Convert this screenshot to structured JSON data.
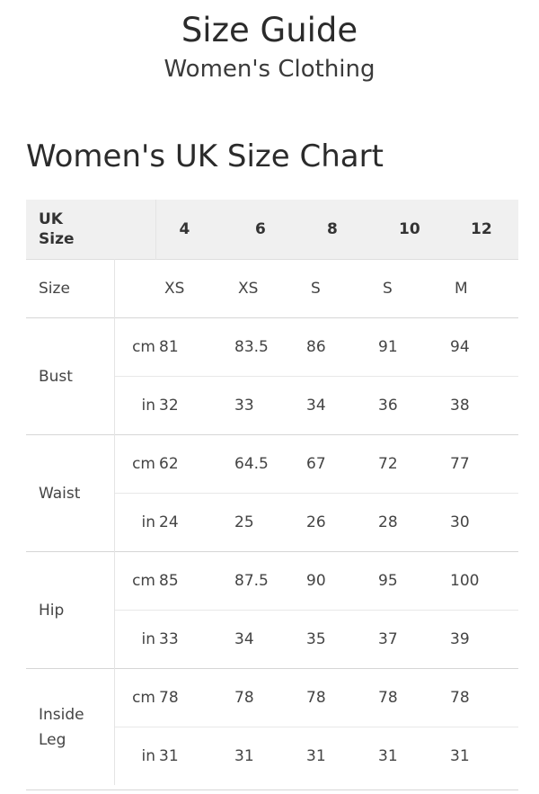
{
  "header": {
    "title": "Size Guide",
    "subtitle": "Women's Clothing"
  },
  "chart": {
    "heading": "Women's UK Size Chart",
    "uk_size_label_line1": "UK",
    "uk_size_label_line2": "Size",
    "uk_sizes": [
      "4",
      "6",
      "8",
      "10",
      "12"
    ],
    "size_label": "Size",
    "letter_sizes": [
      "XS",
      "XS",
      "S",
      "S",
      "M"
    ],
    "measurements": [
      {
        "label": "Bust",
        "rows": [
          {
            "unit": "cm",
            "values": [
              "81",
              "83.5",
              "86",
              "91",
              "94"
            ]
          },
          {
            "unit": "in",
            "values": [
              "32",
              "33",
              "34",
              "36",
              "38"
            ]
          }
        ]
      },
      {
        "label": "Waist",
        "rows": [
          {
            "unit": "cm",
            "values": [
              "62",
              "64.5",
              "67",
              "72",
              "77"
            ]
          },
          {
            "unit": "in",
            "values": [
              "24",
              "25",
              "26",
              "28",
              "30"
            ]
          }
        ]
      },
      {
        "label": "Hip",
        "rows": [
          {
            "unit": "cm",
            "values": [
              "85",
              "87.5",
              "90",
              "95",
              "100"
            ]
          },
          {
            "unit": "in",
            "values": [
              "33",
              "34",
              "35",
              "37",
              "39"
            ]
          }
        ]
      },
      {
        "label_line1": "Inside",
        "label_line2": "Leg",
        "rows": [
          {
            "unit": "cm",
            "values": [
              "78",
              "78",
              "78",
              "78",
              "78"
            ]
          },
          {
            "unit": "in",
            "values": [
              "31",
              "31",
              "31",
              "31",
              "31"
            ]
          }
        ]
      }
    ]
  }
}
